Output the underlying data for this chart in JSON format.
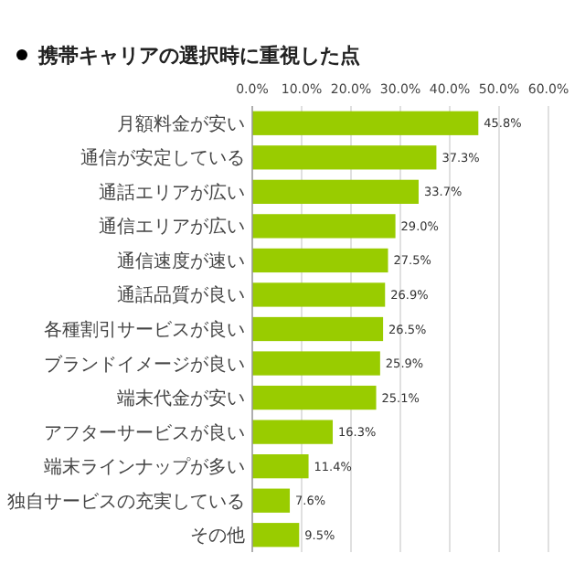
{
  "chart_data": {
    "type": "bar",
    "orientation": "horizontal",
    "title": "携帯キャリアの選択時に重視した点",
    "categories": [
      "月額料金が安い",
      "通信が安定している",
      "通話エリアが広い",
      "通信エリアが広い",
      "通信速度が速い",
      "通話品質が良い",
      "各種割引サービスが良い",
      "ブランドイメージが良い",
      "端末代金が安い",
      "アフターサービスが良い",
      "端末ラインナップが多い",
      "独自サービスの充実している",
      "その他"
    ],
    "values": [
      45.8,
      37.3,
      33.7,
      29.0,
      27.5,
      26.9,
      26.5,
      25.9,
      25.1,
      16.3,
      11.4,
      7.6,
      9.5
    ],
    "value_labels": [
      "45.8%",
      "37.3%",
      "33.7%",
      "29.0%",
      "27.5%",
      "26.9%",
      "26.5%",
      "25.9%",
      "25.1%",
      "16.3%",
      "11.4%",
      "7.6%",
      "9.5%"
    ],
    "color": "#99cc00",
    "xlim": [
      0,
      60
    ],
    "xticks": [
      {
        "value": 0,
        "label": "0.0%"
      },
      {
        "value": 10,
        "label": "10.0%"
      },
      {
        "value": 20,
        "label": "20.0%"
      },
      {
        "value": 30,
        "label": "30.0%"
      },
      {
        "value": 40,
        "label": "40.0%"
      },
      {
        "value": 50,
        "label": "50.0%"
      },
      {
        "value": 60,
        "label": "60.0%"
      }
    ],
    "grid": "x"
  }
}
